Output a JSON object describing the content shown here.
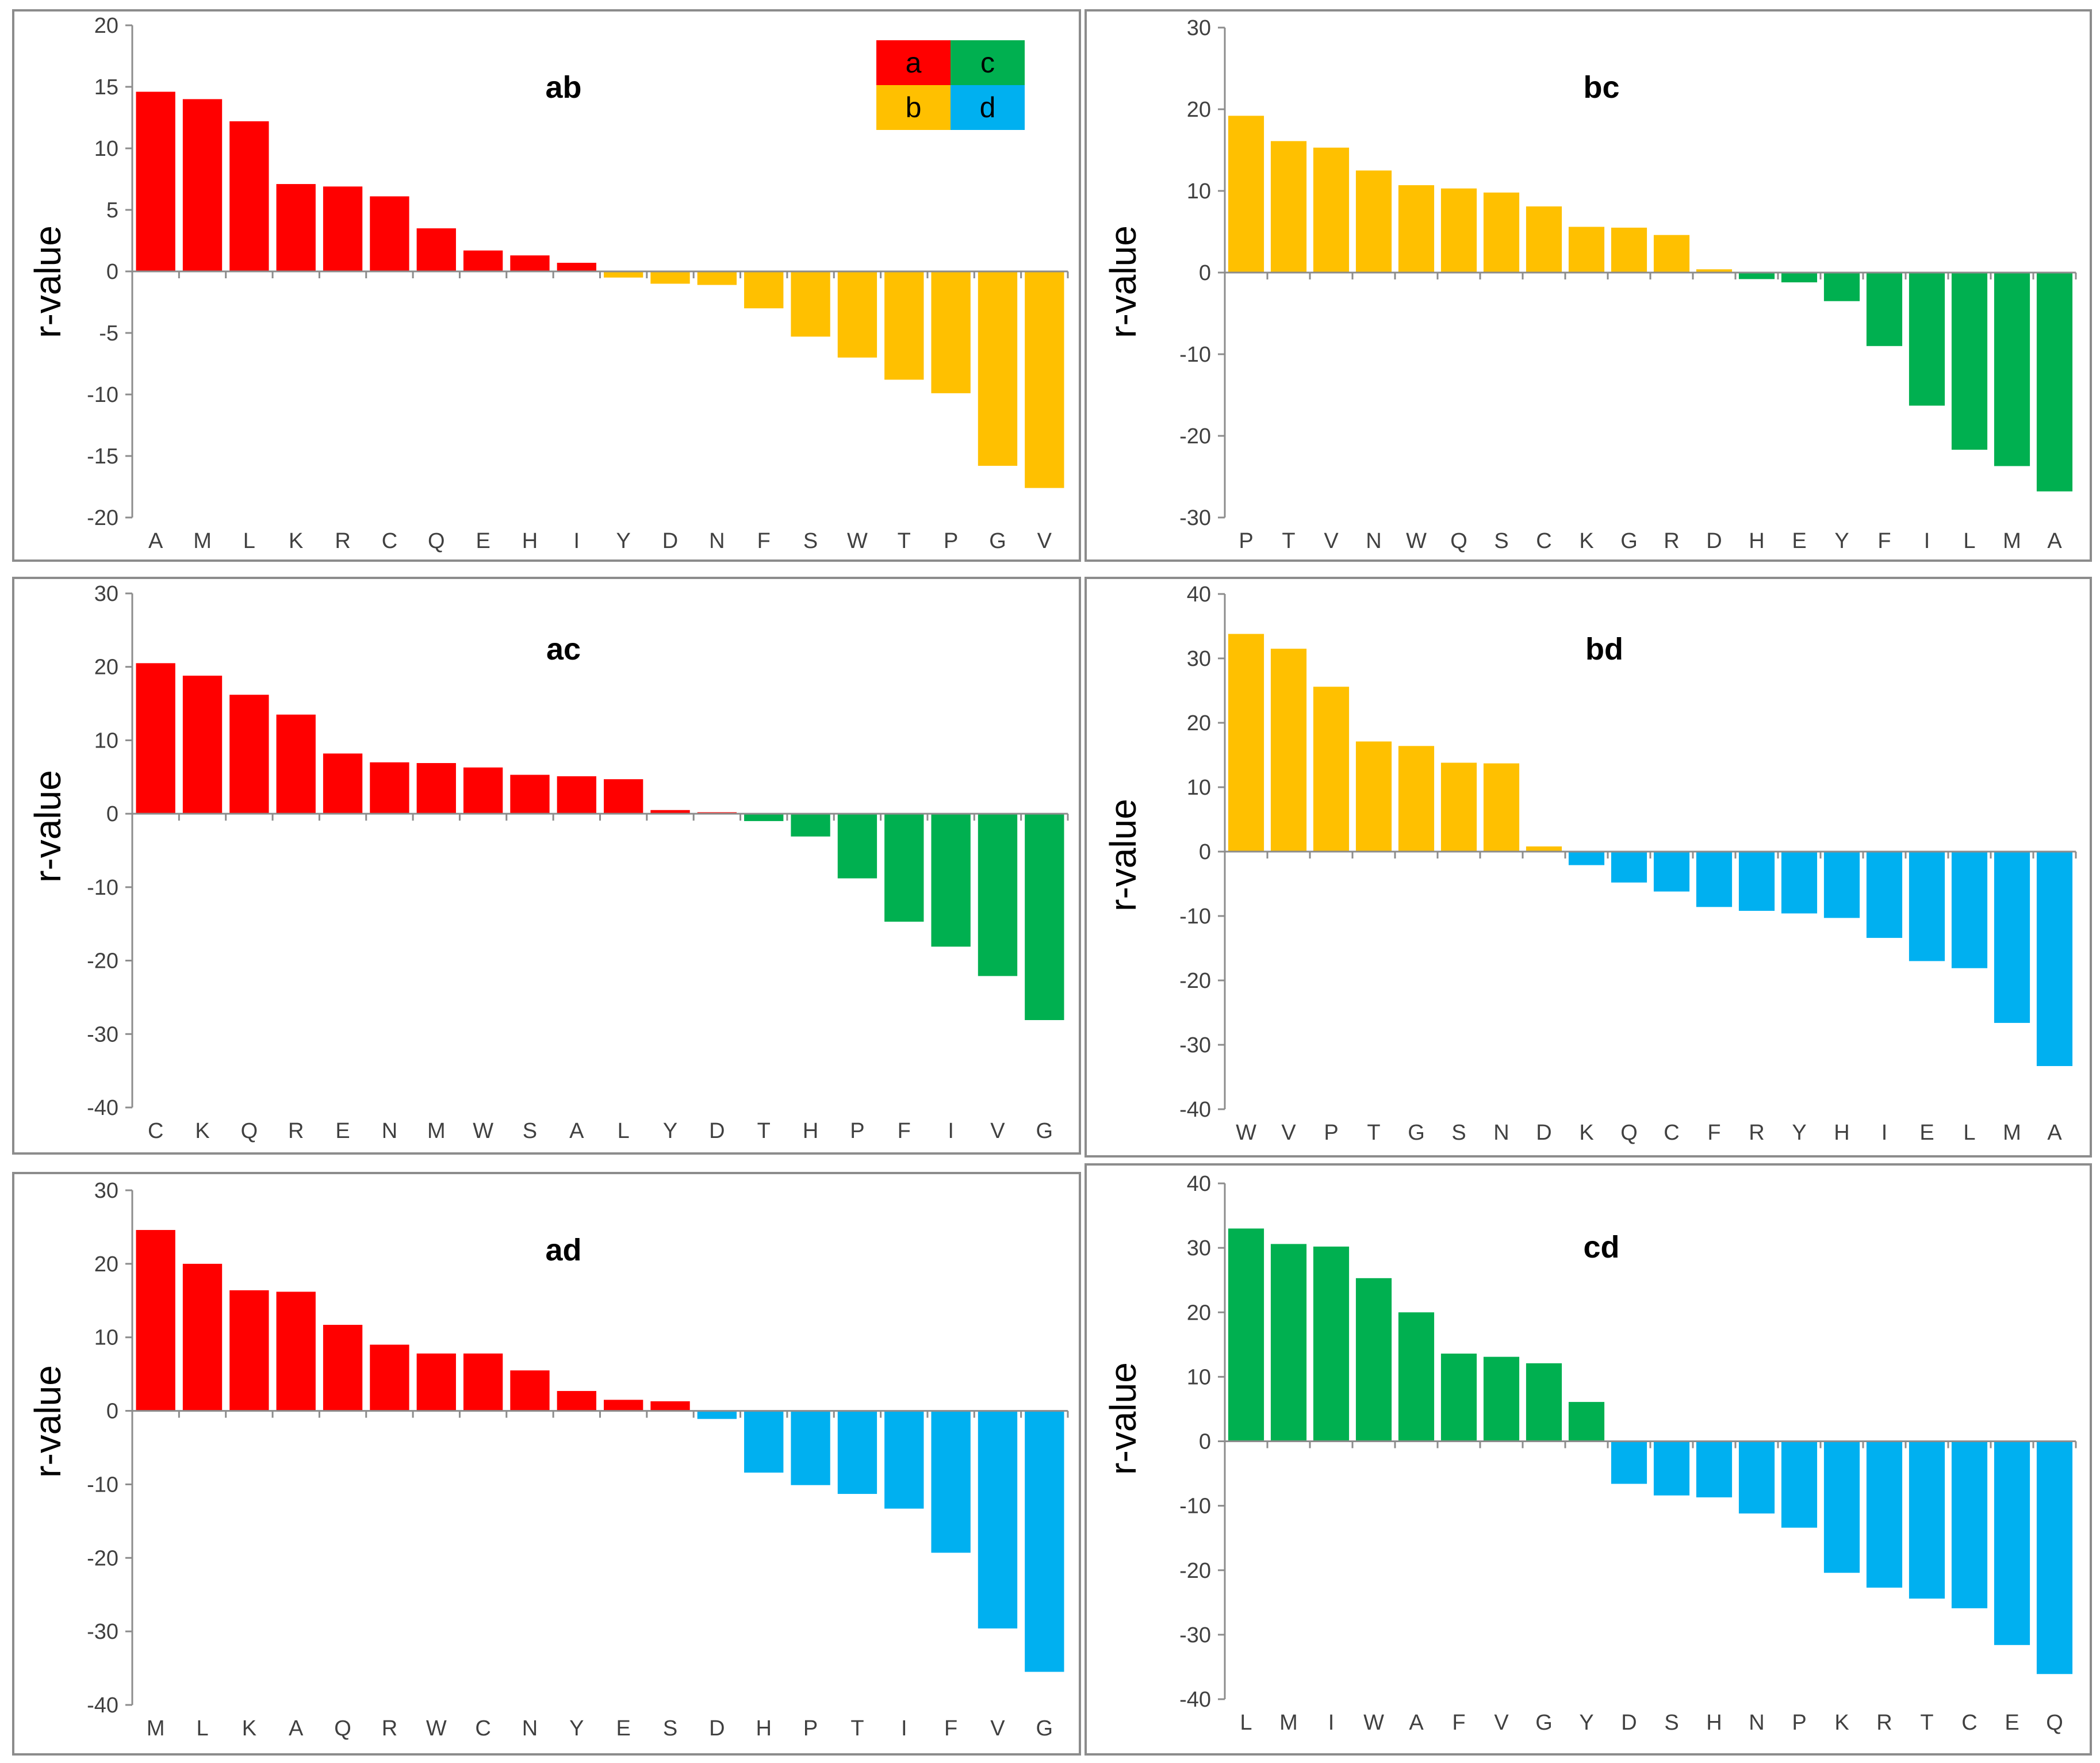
{
  "colors": {
    "a": "#ff0000",
    "b": "#ffc000",
    "c": "#00b050",
    "d": "#00b0f0"
  },
  "legend": {
    "items": [
      "a",
      "c",
      "b",
      "d"
    ]
  },
  "chart_data": [
    {
      "type": "bar",
      "title": "ab",
      "ylabel": "r-value",
      "ylim": [
        -20,
        20
      ],
      "yticks": [
        20,
        15,
        10,
        5,
        0,
        -5,
        -10,
        -15,
        -20
      ],
      "categories": [
        "A",
        "M",
        "L",
        "K",
        "R",
        "C",
        "Q",
        "E",
        "H",
        "I",
        "Y",
        "D",
        "N",
        "F",
        "S",
        "W",
        "T",
        "P",
        "G",
        "V"
      ],
      "values": [
        14.6,
        14.0,
        12.2,
        7.1,
        6.9,
        6.1,
        3.5,
        1.7,
        1.3,
        0.7,
        -0.5,
        -1.0,
        -1.1,
        -3.0,
        -5.3,
        -7.0,
        -8.8,
        -9.9,
        -15.8,
        -17.6
      ],
      "groups": [
        "a",
        "a",
        "a",
        "a",
        "a",
        "a",
        "a",
        "a",
        "a",
        "a",
        "b",
        "b",
        "b",
        "b",
        "b",
        "b",
        "b",
        "b",
        "b",
        "b"
      ],
      "legend": "top-right"
    },
    {
      "type": "bar",
      "title": "bc",
      "ylabel": "r-value",
      "ylim": [
        -30,
        30
      ],
      "yticks": [
        30,
        20,
        10,
        0,
        -10,
        -20,
        -30
      ],
      "categories": [
        "P",
        "T",
        "V",
        "N",
        "W",
        "Q",
        "S",
        "C",
        "K",
        "G",
        "R",
        "D",
        "H",
        "E",
        "Y",
        "F",
        "I",
        "L",
        "M",
        "A"
      ],
      "values": [
        19.2,
        16.1,
        15.3,
        12.5,
        10.7,
        10.3,
        9.8,
        8.1,
        5.6,
        5.5,
        4.6,
        0.4,
        -0.8,
        -1.2,
        -3.5,
        -9.0,
        -16.3,
        -21.7,
        -23.7,
        -26.8
      ],
      "groups": [
        "b",
        "b",
        "b",
        "b",
        "b",
        "b",
        "b",
        "b",
        "b",
        "b",
        "b",
        "b",
        "c",
        "c",
        "c",
        "c",
        "c",
        "c",
        "c",
        "c"
      ]
    },
    {
      "type": "bar",
      "title": "ac",
      "ylabel": "r-value",
      "ylim": [
        -40,
        30
      ],
      "yticks": [
        30,
        20,
        10,
        0,
        -10,
        -20,
        -30,
        -40
      ],
      "categories": [
        "C",
        "K",
        "Q",
        "R",
        "E",
        "N",
        "M",
        "W",
        "S",
        "A",
        "L",
        "Y",
        "D",
        "T",
        "H",
        "P",
        "F",
        "I",
        "V",
        "G"
      ],
      "values": [
        20.5,
        18.8,
        16.2,
        13.5,
        8.2,
        7.0,
        6.9,
        6.3,
        5.3,
        5.1,
        4.7,
        0.5,
        0.2,
        -1.0,
        -3.1,
        -8.8,
        -14.7,
        -18.1,
        -22.1,
        -28.1
      ],
      "groups": [
        "a",
        "a",
        "a",
        "a",
        "a",
        "a",
        "a",
        "a",
        "a",
        "a",
        "a",
        "a",
        "a",
        "c",
        "c",
        "c",
        "c",
        "c",
        "c",
        "c"
      ]
    },
    {
      "type": "bar",
      "title": "bd",
      "ylabel": "r-value",
      "ylim": [
        -40,
        40
      ],
      "yticks": [
        40,
        30,
        20,
        10,
        0,
        -10,
        -20,
        -30,
        -40
      ],
      "categories": [
        "W",
        "V",
        "P",
        "T",
        "G",
        "S",
        "N",
        "D",
        "K",
        "Q",
        "C",
        "F",
        "R",
        "Y",
        "H",
        "I",
        "E",
        "L",
        "M",
        "A"
      ],
      "values": [
        33.8,
        31.5,
        25.6,
        17.1,
        16.4,
        13.8,
        13.7,
        0.8,
        -2.1,
        -4.8,
        -6.2,
        -8.6,
        -9.2,
        -9.6,
        -10.3,
        -13.4,
        -17.0,
        -18.1,
        -26.6,
        -33.3
      ],
      "groups": [
        "b",
        "b",
        "b",
        "b",
        "b",
        "b",
        "b",
        "b",
        "d",
        "d",
        "d",
        "d",
        "d",
        "d",
        "d",
        "d",
        "d",
        "d",
        "d",
        "d"
      ]
    },
    {
      "type": "bar",
      "title": "ad",
      "ylabel": "r-value",
      "ylim": [
        -40,
        30
      ],
      "yticks": [
        30,
        20,
        10,
        0,
        -10,
        -20,
        -30,
        -40
      ],
      "categories": [
        "M",
        "L",
        "K",
        "A",
        "Q",
        "R",
        "W",
        "C",
        "N",
        "Y",
        "E",
        "S",
        "D",
        "H",
        "P",
        "T",
        "I",
        "F",
        "V",
        "G"
      ],
      "values": [
        24.6,
        20.0,
        16.4,
        16.2,
        11.7,
        9.0,
        7.8,
        7.8,
        5.5,
        2.7,
        1.5,
        1.3,
        -1.1,
        -8.4,
        -10.1,
        -11.3,
        -13.3,
        -19.3,
        -29.6,
        -35.5
      ],
      "groups": [
        "a",
        "a",
        "a",
        "a",
        "a",
        "a",
        "a",
        "a",
        "a",
        "a",
        "a",
        "a",
        "d",
        "d",
        "d",
        "d",
        "d",
        "d",
        "d",
        "d"
      ]
    },
    {
      "type": "bar",
      "title": "cd",
      "ylabel": "r-value",
      "ylim": [
        -40,
        40
      ],
      "yticks": [
        40,
        30,
        20,
        10,
        0,
        -10,
        -20,
        -30,
        -40
      ],
      "categories": [
        "L",
        "M",
        "I",
        "W",
        "A",
        "F",
        "V",
        "G",
        "Y",
        "D",
        "S",
        "H",
        "N",
        "P",
        "K",
        "R",
        "T",
        "C",
        "E",
        "Q"
      ],
      "values": [
        33.0,
        30.6,
        30.2,
        25.3,
        20.0,
        13.6,
        13.1,
        12.1,
        6.1,
        -6.6,
        -8.4,
        -8.7,
        -11.2,
        -13.4,
        -20.4,
        -22.7,
        -24.4,
        -25.9,
        -31.6,
        -36.1
      ],
      "groups": [
        "c",
        "c",
        "c",
        "c",
        "c",
        "c",
        "c",
        "c",
        "c",
        "d",
        "d",
        "d",
        "d",
        "d",
        "d",
        "d",
        "d",
        "d",
        "d",
        "d"
      ]
    }
  ]
}
